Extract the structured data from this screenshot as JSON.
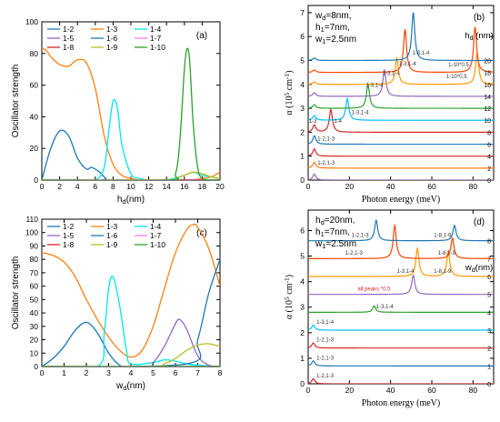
{
  "chart_data": [
    {
      "panel": "(a)",
      "type": "line",
      "xlabel": "h_d(nm)",
      "ylabel": "Oscillator strength",
      "xlim": [
        0,
        20
      ],
      "ylim": [
        0,
        100
      ],
      "xticks": [
        0,
        2,
        4,
        6,
        8,
        10,
        12,
        14,
        16,
        18,
        20
      ],
      "yticks": [
        0,
        20,
        40,
        60,
        80,
        100
      ],
      "legend_position": "top-left",
      "series": [
        {
          "name": "1-2",
          "color": "#1f77b4",
          "x": [
            0,
            1,
            2,
            3,
            4,
            5,
            5.6,
            6.5,
            7.2,
            8,
            20
          ],
          "y": [
            0,
            20,
            31,
            28,
            14,
            7,
            8,
            5,
            1,
            0,
            0
          ]
        },
        {
          "name": "1-3",
          "color": "#ff7f0e",
          "x": [
            0,
            0.5,
            1,
            2,
            3,
            4,
            5,
            6,
            7,
            8,
            9,
            10,
            11,
            12,
            13,
            14,
            15,
            16,
            17,
            18,
            19,
            20
          ],
          "y": [
            83,
            82,
            78,
            73,
            72,
            76,
            74,
            58,
            28,
            10,
            3,
            1,
            0,
            0,
            0,
            0,
            0,
            0,
            0,
            1,
            2,
            5
          ]
        },
        {
          "name": "1-4",
          "color": "#00e5ee",
          "x": [
            0,
            4,
            6,
            7,
            7.5,
            8,
            8.5,
            9,
            10,
            11,
            12,
            14,
            16,
            17,
            18,
            20
          ],
          "y": [
            0,
            0,
            0,
            8,
            30,
            50,
            45,
            22,
            4,
            1,
            0,
            0,
            3,
            5,
            3,
            1
          ]
        },
        {
          "name": "1-5",
          "color": "#9467bd",
          "x": [
            0,
            20
          ],
          "y": [
            0,
            0
          ]
        },
        {
          "name": "1-6",
          "color": "#1f77b4",
          "x": [
            0,
            20
          ],
          "y": [
            0,
            0
          ]
        },
        {
          "name": "1-7",
          "color": "#ff7ff0",
          "x": [
            0,
            20
          ],
          "y": [
            0,
            0
          ]
        },
        {
          "name": "1-8",
          "color": "#d62728",
          "x": [
            0,
            20
          ],
          "y": [
            0,
            0
          ]
        },
        {
          "name": "1-9",
          "color": "#bcbd22",
          "x": [
            0,
            14,
            15,
            16,
            17,
            18,
            19,
            20
          ],
          "y": [
            0,
            0,
            1,
            3,
            5,
            4,
            2,
            1
          ]
        },
        {
          "name": "1-10",
          "color": "#2ca02c",
          "x": [
            0,
            14,
            15,
            15.5,
            16,
            16.3,
            16.6,
            17,
            17.5,
            18,
            19,
            20
          ],
          "y": [
            0,
            0,
            4,
            25,
            70,
            83,
            75,
            35,
            8,
            1,
            0,
            0
          ]
        }
      ]
    },
    {
      "panel": "(b)",
      "type": "line",
      "xlabel": "Photon energy (meV)",
      "ylabel": "α (10^5 cm^-1)",
      "xlim": [
        0,
        90
      ],
      "ylim": [
        0,
        7.3
      ],
      "xticks": [
        0,
        20,
        40,
        60,
        80
      ],
      "yticks": [
        0,
        1,
        2,
        3,
        4,
        5,
        6,
        7
      ],
      "params": [
        "w_d=8nm,",
        "h_1=7nm,",
        "w_1=2.5nm"
      ],
      "legend_title": "h_d (nm)",
      "traces": [
        {
          "label": "0",
          "color": "#9467bd",
          "offset": 0,
          "peaks": [
            [
              3,
              0.25
            ]
          ]
        },
        {
          "label": "2",
          "color": "#ff7f0e",
          "offset": 0.5,
          "peaks": [
            [
              3,
              0.25
            ]
          ]
        },
        {
          "label": "4",
          "color": "#d62728",
          "offset": 1.0,
          "peaks": [
            [
              3,
              0.3
            ]
          ]
        },
        {
          "label": "6",
          "color": "#1f77b4",
          "offset": 1.5,
          "peaks": [
            [
              3,
              0.35
            ]
          ]
        },
        {
          "label": "8",
          "color": "#d62728",
          "offset": 2.0,
          "peaks": [
            [
              3,
              0.3
            ],
            [
              11,
              0.95
            ]
          ]
        },
        {
          "label": "10",
          "color": "#00bfff",
          "offset": 2.5,
          "peaks": [
            [
              3,
              0.2
            ],
            [
              19,
              0.9
            ]
          ]
        },
        {
          "label": "12",
          "color": "#2ca02c",
          "offset": 3.0,
          "peaks": [
            [
              3,
              0.15
            ],
            [
              29,
              1.0
            ]
          ]
        },
        {
          "label": "14",
          "color": "#9467bd",
          "offset": 3.5,
          "peaks": [
            [
              3,
              0.15
            ],
            [
              37,
              1.1
            ]
          ]
        },
        {
          "label": "16",
          "color": "#ff9900",
          "offset": 4.0,
          "peaks": [
            [
              3,
              0.1
            ],
            [
              43,
              1.1
            ],
            [
              82,
              1.3
            ]
          ]
        },
        {
          "label": "18",
          "color": "#ff4500",
          "offset": 4.5,
          "peaks": [
            [
              3,
              0.1
            ],
            [
              47,
              1.8
            ],
            [
              81,
              1.9
            ]
          ]
        },
        {
          "label": "20",
          "color": "#1f77b4",
          "offset": 5.0,
          "peaks": [
            [
              3,
              0.1
            ],
            [
              51,
              2.0
            ]
          ]
        }
      ],
      "annotations": [
        {
          "text": "1-2,1-3",
          "x": 4.5,
          "y": 0.65,
          "color": "#333333"
        },
        {
          "text": "1-2,1-3",
          "x": 4.5,
          "y": 1.65,
          "color": "#333333"
        },
        {
          "text": "1-3",
          "x": 0.3,
          "y": 2.4,
          "color": "#333333"
        },
        {
          "text": "1-4",
          "x": 12.5,
          "y": 2.4,
          "color": "#333333"
        },
        {
          "text": "1-3,1-4",
          "x": 21,
          "y": 2.75,
          "color": "#333333"
        },
        {
          "text": "1-3,1-4",
          "x": 28,
          "y": 3.9,
          "color": "#333333"
        },
        {
          "text": "1-3,1-4",
          "x": 36,
          "y": 4.4,
          "color": "#333333"
        },
        {
          "text": "1-3,1-4",
          "x": 44,
          "y": 4.8,
          "color": "#333333"
        },
        {
          "text": "1-3,1-4",
          "x": 50.5,
          "y": 5.25,
          "color": "#333333"
        },
        {
          "text": "1-10*0.5",
          "x": 68,
          "y": 4.75,
          "color": "#333333"
        },
        {
          "text": "1-10*0.5",
          "x": 67,
          "y": 4.25,
          "color": "#333333"
        }
      ]
    },
    {
      "panel": "(c)",
      "type": "line",
      "xlabel": "w_d(nm)",
      "ylabel": "Oscillator strength",
      "xlim": [
        0,
        8
      ],
      "ylim": [
        0,
        110
      ],
      "xticks": [
        0,
        1,
        2,
        3,
        4,
        5,
        6,
        7,
        8
      ],
      "yticks": [
        0,
        10,
        20,
        30,
        40,
        50,
        60,
        70,
        80,
        90,
        100,
        110
      ],
      "legend_position": "top-left",
      "series": [
        {
          "name": "1-2",
          "color": "#1f77b4",
          "x": [
            0,
            0.5,
            1,
            1.5,
            2,
            2.5,
            3,
            3.5,
            4,
            8
          ],
          "y": [
            0,
            6,
            15,
            27,
            33,
            25,
            10,
            1,
            0,
            0
          ]
        },
        {
          "name": "1-3",
          "color": "#ff7f0e",
          "x": [
            0,
            0.5,
            1,
            1.5,
            2,
            2.5,
            3,
            3.5,
            4,
            4.5,
            5,
            5.5,
            6,
            6.5,
            6.8,
            7,
            7.5,
            8
          ],
          "y": [
            85,
            83,
            78,
            67,
            50,
            35,
            22,
            12,
            7,
            12,
            30,
            58,
            85,
            102,
            106,
            104,
            88,
            60
          ]
        },
        {
          "name": "1-4",
          "color": "#00e5ee",
          "x": [
            0,
            2.5,
            2.8,
            3,
            3.2,
            3.5,
            3.8,
            4,
            5,
            5.5,
            6,
            6.5,
            7,
            8
          ],
          "y": [
            0,
            0,
            25,
            58,
            67,
            45,
            12,
            2,
            3,
            5,
            4,
            2,
            1,
            0
          ]
        },
        {
          "name": "1-5",
          "color": "#9467bd",
          "x": [
            0,
            4.5,
            5,
            5.5,
            6,
            6.2,
            6.5,
            7,
            7.5,
            8
          ],
          "y": [
            0,
            0,
            3,
            15,
            32,
            35,
            28,
            8,
            1,
            0
          ]
        },
        {
          "name": "1-6",
          "color": "#1f77b4",
          "x": [
            0,
            6.5,
            7,
            7.5,
            8
          ],
          "y": [
            0,
            2,
            20,
            55,
            80
          ]
        },
        {
          "name": "1-7",
          "color": "#ff7ff0",
          "x": [
            0,
            8
          ],
          "y": [
            0,
            0
          ]
        },
        {
          "name": "1-8",
          "color": "#d62728",
          "x": [
            0,
            8
          ],
          "y": [
            0,
            0
          ]
        },
        {
          "name": "1-9",
          "color": "#bcbd22",
          "x": [
            0,
            5,
            5.5,
            6,
            6.5,
            7,
            7.5,
            8
          ],
          "y": [
            0,
            0,
            2,
            6,
            12,
            16,
            17,
            15
          ]
        },
        {
          "name": "1-10",
          "color": "#2ca02c",
          "x": [
            0,
            8
          ],
          "y": [
            0,
            0
          ]
        }
      ]
    },
    {
      "panel": "(d)",
      "type": "line",
      "xlabel": "Photon energy (meV)",
      "ylabel": "α (10^5 cm^-1)",
      "xlim": [
        0,
        90
      ],
      "ylim": [
        0,
        6.8
      ],
      "xticks": [
        0,
        20,
        40,
        60,
        80
      ],
      "yticks": [
        0,
        1,
        2,
        3,
        4,
        5,
        6
      ],
      "params": [
        "h_d=20nm,",
        "h_1=7nm,",
        "w_1=2.5nm"
      ],
      "legend_title": "w_d(nm)",
      "traces": [
        {
          "label": "0",
          "color": "#d62728",
          "offset": 0,
          "peaks": [
            [
              2.5,
              0.2
            ]
          ]
        },
        {
          "label": "1",
          "color": "#1f77b4",
          "offset": 0.7,
          "peaks": [
            [
              2.5,
              0.2
            ]
          ]
        },
        {
          "label": "2",
          "color": "#d62728",
          "offset": 1.4,
          "peaks": [
            [
              2.5,
              0.2
            ]
          ]
        },
        {
          "label": "3",
          "color": "#00bfff",
          "offset": 2.1,
          "peaks": [
            [
              2.5,
              0.2
            ]
          ]
        },
        {
          "label": "4",
          "color": "#2ca02c",
          "offset": 2.8,
          "peaks": [
            [
              32,
              0.25
            ]
          ]
        },
        {
          "label": "5",
          "color": "#9467bd",
          "offset": 3.5,
          "peaks": [
            [
              51,
              0.75
            ]
          ]
        },
        {
          "label": "6",
          "color": "#ff9900",
          "offset": 4.2,
          "peaks": [
            [
              53,
              1.1
            ],
            [
              68,
              1.0
            ]
          ]
        },
        {
          "label": "7",
          "color": "#ff4500",
          "offset": 4.9,
          "peaks": [
            [
              42,
              1.3
            ],
            [
              70,
              0.8
            ]
          ]
        },
        {
          "label": "8",
          "color": "#1f77b4",
          "offset": 5.6,
          "peaks": [
            [
              33,
              0.8
            ],
            [
              71,
              0.6
            ]
          ]
        }
      ],
      "annotations": [
        {
          "text": "1-2,1-3",
          "x": 4,
          "y": 0.25,
          "color": "#333333"
        },
        {
          "text": "1-2,1-3",
          "x": 4,
          "y": 0.95,
          "color": "#333333"
        },
        {
          "text": "1-2,1-3",
          "x": 4,
          "y": 1.65,
          "color": "#333333"
        },
        {
          "text": "1-3,1-4",
          "x": 4,
          "y": 2.35,
          "color": "#333333"
        },
        {
          "text": "1-3,1-4",
          "x": 33,
          "y": 2.95,
          "color": "#333333"
        },
        {
          "text": "all peaks *0.5",
          "x": 24,
          "y": 3.65,
          "color": "#d62728"
        },
        {
          "text": "1-3,1-4",
          "x": 43,
          "y": 4.35,
          "color": "#333333"
        },
        {
          "text": "1-8,1-9",
          "x": 61,
          "y": 4.35,
          "color": "#333333"
        },
        {
          "text": "1-8,1-9",
          "x": 63,
          "y": 5.05,
          "color": "#333333"
        },
        {
          "text": "1-8,1-9",
          "x": 61,
          "y": 5.75,
          "color": "#333333"
        },
        {
          "text": "1-2,1-3",
          "x": 18,
          "y": 5.05,
          "color": "#333333"
        },
        {
          "text": "1-2,1-3",
          "x": 21,
          "y": 5.75,
          "color": "#333333"
        }
      ]
    }
  ]
}
